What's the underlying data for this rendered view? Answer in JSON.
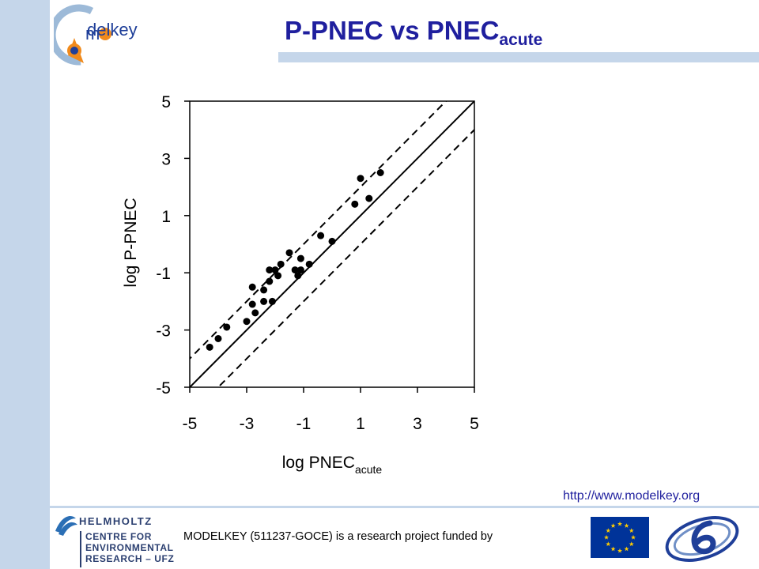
{
  "title": {
    "main": "P-PNEC vs PNEC",
    "sub": "acute"
  },
  "logo": {
    "text": "delkey"
  },
  "url": "http://www.modelkey.org",
  "footer": {
    "text": "MODELKEY (511237-GOCE) is a research project funded by",
    "helmholtz": {
      "name": "HELMHOLTZ",
      "lines": [
        "CENTRE FOR",
        "ENVIRONMENTAL",
        "RESEARCH – UFZ"
      ]
    }
  },
  "colors": {
    "title": "#1f1f9e",
    "band": "#c5d6ea",
    "eu_blue": "#003399",
    "eu_star": "#ffcc00"
  },
  "icons": [
    "modelkey-logo",
    "helmholtz-logo",
    "eu-flag-icon",
    "fp6-logo"
  ],
  "chart_data": {
    "type": "scatter",
    "xlabel": "log PNEC",
    "xlabel_sub": "acute",
    "ylabel": "log P-PNEC",
    "xlim": [
      -5,
      5
    ],
    "ylim": [
      -5,
      5
    ],
    "xticks": [
      -5,
      -3,
      -1,
      1,
      3,
      5
    ],
    "yticks": [
      -5,
      -3,
      -1,
      1,
      3,
      5
    ],
    "reference_lines": [
      {
        "style": "solid",
        "slope": 1,
        "intercept": 0
      },
      {
        "style": "dashed",
        "slope": 1,
        "intercept": 1
      },
      {
        "style": "dashed",
        "slope": 1,
        "intercept": -1
      }
    ],
    "points": [
      [
        -4.3,
        -3.6
      ],
      [
        -4.0,
        -3.3
      ],
      [
        -3.7,
        -2.9
      ],
      [
        -3.0,
        -2.7
      ],
      [
        -2.8,
        -2.1
      ],
      [
        -2.7,
        -2.4
      ],
      [
        -2.8,
        -1.5
      ],
      [
        -2.4,
        -2.0
      ],
      [
        -2.4,
        -1.6
      ],
      [
        -2.2,
        -1.3
      ],
      [
        -2.2,
        -0.9
      ],
      [
        -2.1,
        -2.0
      ],
      [
        -2.0,
        -0.9
      ],
      [
        -1.9,
        -1.1
      ],
      [
        -1.8,
        -0.7
      ],
      [
        -1.5,
        -0.3
      ],
      [
        -1.3,
        -0.9
      ],
      [
        -1.2,
        -1.1
      ],
      [
        -1.1,
        -0.9
      ],
      [
        -1.1,
        -0.5
      ],
      [
        -0.8,
        -0.7
      ],
      [
        -0.4,
        0.3
      ],
      [
        0.0,
        0.1
      ],
      [
        0.8,
        1.4
      ],
      [
        1.0,
        2.3
      ],
      [
        1.3,
        1.6
      ],
      [
        1.7,
        2.5
      ]
    ]
  }
}
